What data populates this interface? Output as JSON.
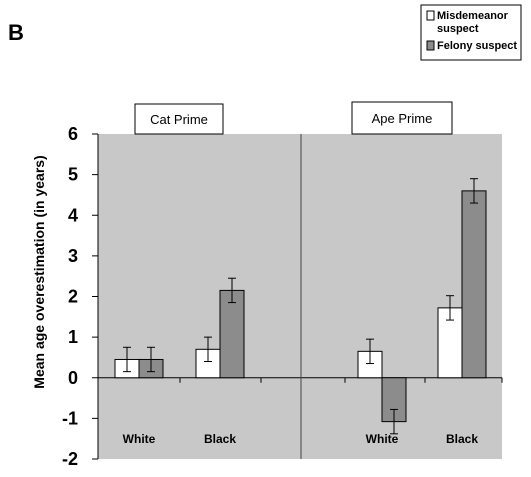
{
  "chart_data": {
    "type": "bar",
    "panel_label": "B",
    "ylabel": "Mean age overestimation (in years)",
    "ylim": [
      -2,
      6
    ],
    "yticks": [
      "6",
      "5",
      "4",
      "3",
      "2",
      "1",
      "0",
      "-1",
      "-2"
    ],
    "ytick_values": [
      6,
      5,
      4,
      3,
      2,
      1,
      0,
      -1,
      -2
    ],
    "grid": false,
    "legend_position": "top-right",
    "colors": {
      "misdemeanor": "#ffffff",
      "felony": "#8c8c8c",
      "plot_background": "#c8c8c8"
    },
    "legend": [
      {
        "lines": [
          "Misdemeanor",
          "suspect"
        ],
        "key": "misdemeanor"
      },
      {
        "lines": [
          "Felony suspect"
        ],
        "key": "felony"
      }
    ],
    "panels": [
      {
        "title": "Cat Prime",
        "categories": [
          "White",
          "Black"
        ],
        "series": [
          {
            "name": "Misdemeanor suspect",
            "key": "misdemeanor",
            "values": [
              0.45,
              0.7
            ],
            "errors": [
              0.3,
              0.3
            ]
          },
          {
            "name": "Felony suspect",
            "key": "felony",
            "values": [
              0.45,
              2.15
            ],
            "errors": [
              0.3,
              0.3
            ]
          }
        ]
      },
      {
        "title": "Ape Prime",
        "categories": [
          "White",
          "Black"
        ],
        "series": [
          {
            "name": "Misdemeanor suspect",
            "key": "misdemeanor",
            "values": [
              0.65,
              1.72
            ],
            "errors": [
              0.3,
              0.3
            ]
          },
          {
            "name": "Felony suspect",
            "key": "felony",
            "values": [
              -1.08,
              4.6
            ],
            "errors": [
              0.3,
              0.3
            ]
          }
        ]
      }
    ]
  }
}
